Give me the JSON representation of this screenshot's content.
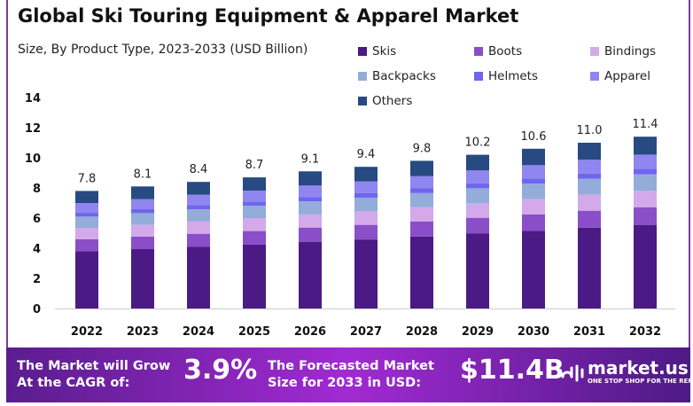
{
  "chart_data": {
    "type": "bar",
    "stacked": true,
    "title": "Global Ski Touring Equipment & Apparel Market",
    "subtitle": "Size, By Product Type, 2023-2033 (USD Billion)",
    "categories": [
      "2022",
      "2023",
      "2024",
      "2025",
      "2026",
      "2027",
      "2028",
      "2029",
      "2030",
      "2031",
      "2032"
    ],
    "totals": [
      "7.8",
      "8.1",
      "8.4",
      "8.7",
      "9.1",
      "9.4",
      "9.8",
      "10.2",
      "10.6",
      "11.0",
      "11.4"
    ],
    "ylim": [
      0,
      14
    ],
    "yticks": [
      "0",
      "2",
      "4",
      "6",
      "8",
      "10",
      "12",
      "14"
    ],
    "grid": false,
    "legend_position": "top-right",
    "series": [
      {
        "name": "Skis",
        "color": "#4b1a84",
        "values": [
          3.8,
          3.94,
          4.09,
          4.24,
          4.43,
          4.58,
          4.77,
          4.97,
          5.16,
          5.36,
          5.55
        ]
      },
      {
        "name": "Boots",
        "color": "#8a4fc8",
        "values": [
          0.8,
          0.83,
          0.87,
          0.9,
          0.94,
          0.97,
          1.01,
          1.05,
          1.09,
          1.13,
          1.17
        ]
      },
      {
        "name": "Bindings",
        "color": "#d3a9ea",
        "values": [
          0.75,
          0.78,
          0.81,
          0.84,
          0.87,
          0.9,
          0.94,
          0.98,
          1.02,
          1.06,
          1.09
        ]
      },
      {
        "name": "Backpacks",
        "color": "#93acd9",
        "values": [
          0.75,
          0.78,
          0.81,
          0.84,
          0.87,
          0.9,
          0.94,
          0.98,
          1.02,
          1.06,
          1.09
        ]
      },
      {
        "name": "Helmets",
        "color": "#7065ee",
        "values": [
          0.25,
          0.26,
          0.27,
          0.28,
          0.29,
          0.3,
          0.31,
          0.33,
          0.34,
          0.35,
          0.36
        ]
      },
      {
        "name": "Apparel",
        "color": "#8f86f0",
        "values": [
          0.65,
          0.67,
          0.7,
          0.72,
          0.76,
          0.78,
          0.81,
          0.85,
          0.88,
          0.91,
          0.95
        ]
      },
      {
        "name": "Others",
        "color": "#274a82",
        "values": [
          0.8,
          0.84,
          0.85,
          0.88,
          0.94,
          0.97,
          1.02,
          1.04,
          1.09,
          1.13,
          1.19
        ]
      }
    ]
  },
  "footer": {
    "cagr_text_1": "The Market will Grow",
    "cagr_text_2": "At the CAGR of:",
    "cagr_value": "3.9%",
    "forecast_text_1": "The Forecasted Market",
    "forecast_text_2": "Size for 2033 in USD:",
    "forecast_value": "$11.4B",
    "brand": "market.us",
    "tagline": "ONE STOP SHOP FOR THE REPORTS"
  }
}
